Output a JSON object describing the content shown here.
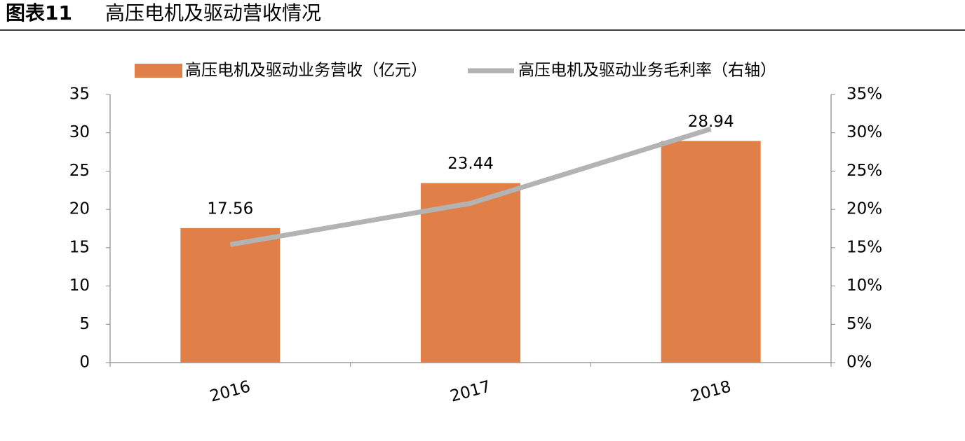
{
  "chart_data": {
    "type": "bar_line",
    "figure_label": "图表11",
    "title": "高压电机及驱动营收情况",
    "categories": [
      "2016",
      "2017",
      "2018"
    ],
    "series": [
      {
        "name": "高压电机及驱动业务营收（亿元）",
        "type": "bar",
        "color": "#e07f47",
        "values": [
          17.56,
          23.44,
          28.94
        ],
        "show_values": true
      },
      {
        "name": "高压电机及驱动业务毛利率（右轴）",
        "type": "line",
        "axis": "y2",
        "color": "#b3b3b3",
        "values": [
          15.4,
          20.8,
          30.5
        ]
      }
    ],
    "ylim": [
      0,
      35
    ],
    "yticks": [
      0,
      5,
      10,
      15,
      20,
      25,
      30,
      35
    ],
    "y2lim": [
      0,
      35
    ],
    "y2ticks": [
      {
        "value": 0,
        "label": "0%"
      },
      {
        "value": 5,
        "label": "5%"
      },
      {
        "value": 10,
        "label": "10%"
      },
      {
        "value": 15,
        "label": "15%"
      },
      {
        "value": 20,
        "label": "20%"
      },
      {
        "value": 25,
        "label": "25%"
      },
      {
        "value": 30,
        "label": "30%"
      },
      {
        "value": 35,
        "label": "35%"
      }
    ],
    "legend": "top",
    "grid": false
  }
}
